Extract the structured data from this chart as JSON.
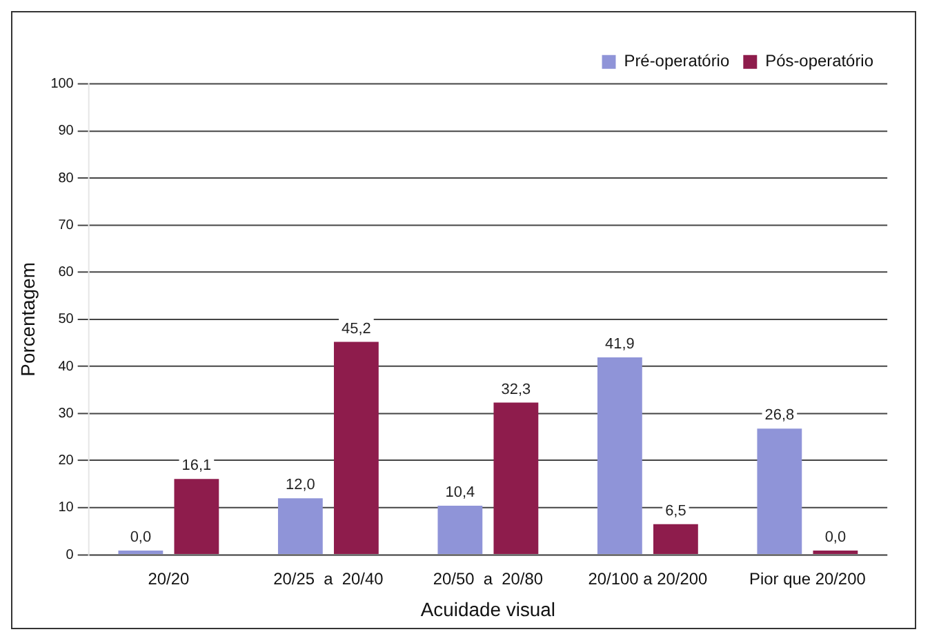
{
  "chart_data": {
    "type": "bar",
    "xlabel": "Acuidade visual",
    "ylabel": "Porcentagem",
    "categories": [
      "20/20",
      "20/25  a  20/40",
      "20/50  a  20/80",
      "20/100 a 20/200",
      "Pior que 20/200"
    ],
    "series": [
      {
        "name": "Pré-operatório",
        "color": "#8f94d8",
        "values": [
          0.0,
          12.0,
          10.4,
          41.9,
          26.8
        ],
        "value_labels": [
          "0,0",
          "12,0",
          "10,4",
          "41,9",
          "26,8"
        ]
      },
      {
        "name": "Pós-operatório",
        "color": "#8e1c4c",
        "values": [
          16.1,
          45.2,
          32.3,
          6.5,
          0.0
        ],
        "value_labels": [
          "16,1",
          "45,2",
          "32,3",
          "6,5",
          "0,0"
        ]
      }
    ],
    "ylim": [
      0,
      100
    ],
    "yticks": [
      0,
      10,
      20,
      30,
      40,
      50,
      60,
      70,
      80,
      90,
      100
    ],
    "grid": "y",
    "legend": "top right"
  }
}
